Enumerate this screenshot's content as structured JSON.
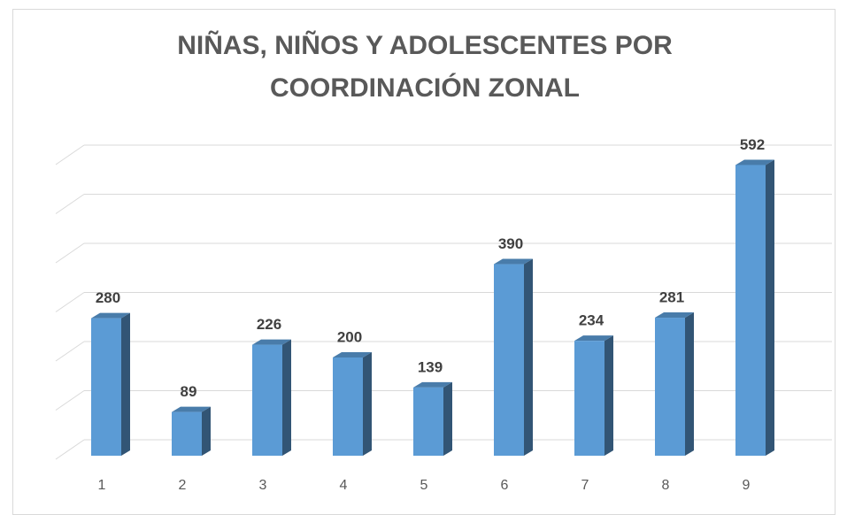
{
  "chart_data": {
    "type": "bar",
    "title": "NIÑAS, NIÑOS Y ADOLESCENTES POR COORDINACIÓN ZONAL",
    "categories": [
      "1",
      "2",
      "3",
      "4",
      "5",
      "6",
      "7",
      "8",
      "9"
    ],
    "values": [
      280,
      89,
      226,
      200,
      139,
      390,
      234,
      281,
      592
    ],
    "color": "#5b9bd5",
    "ylim": [
      0,
      600
    ],
    "yticks": [
      0,
      100,
      200,
      300,
      400,
      500,
      600
    ],
    "grid": true
  }
}
